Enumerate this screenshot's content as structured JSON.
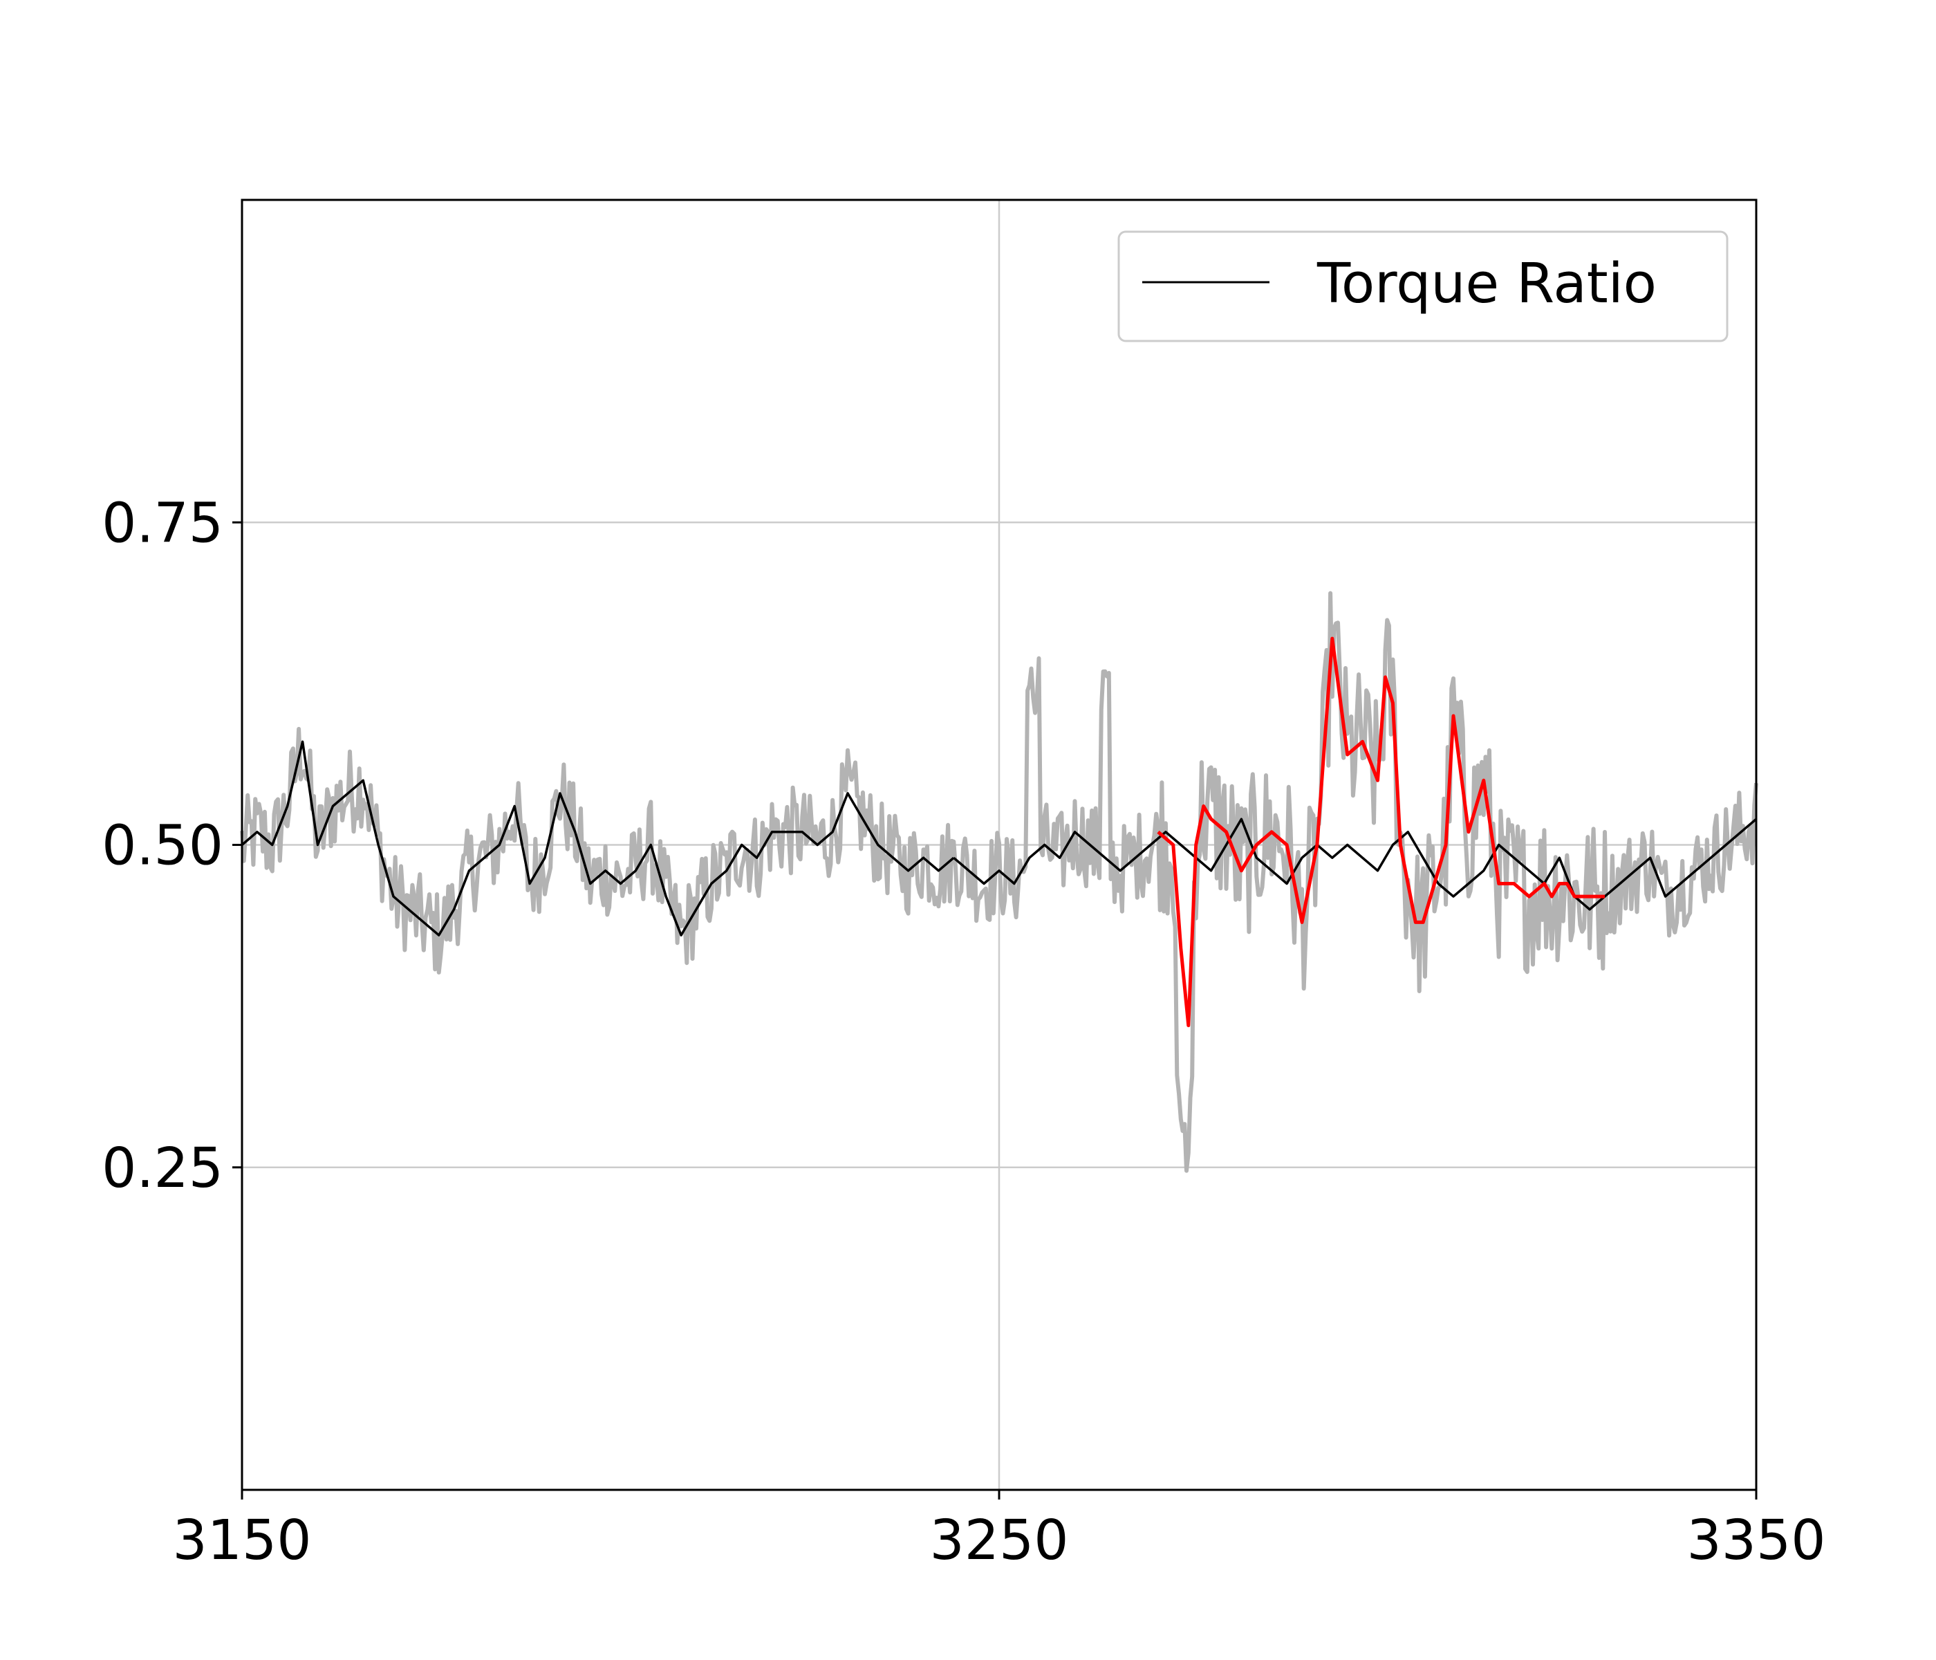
{
  "chart_data": {
    "type": "line",
    "title": "",
    "xlabel": "",
    "ylabel": "",
    "xlim": [
      3150,
      3350
    ],
    "ylim": [
      0.0,
      1.0
    ],
    "grid": true,
    "legend_position": "top-right",
    "x_ticks": [
      {
        "value": 3150,
        "label": "3150"
      },
      {
        "value": 3250,
        "label": "3250"
      },
      {
        "value": 3350,
        "label": "3350"
      }
    ],
    "y_ticks": [
      {
        "value": 0.25,
        "label": "0.25"
      },
      {
        "value": 0.5,
        "label": "0.50"
      },
      {
        "value": 0.75,
        "label": "0.75"
      }
    ],
    "legend": [
      {
        "label": "Torque Ratio",
        "color": "#000000"
      }
    ],
    "colors": {
      "raw": "#b3b3b3",
      "smoothed": "#000000",
      "highlight": "#ff0000"
    },
    "series": [
      {
        "name": "Torque Ratio",
        "color": "#000000",
        "x": [
          3150,
          3152,
          3154,
          3156,
          3158,
          3160,
          3162,
          3164,
          3166,
          3168,
          3170,
          3172,
          3174,
          3176,
          3178,
          3180,
          3182,
          3184,
          3186,
          3188,
          3190,
          3192,
          3194,
          3196,
          3198,
          3200,
          3202,
          3204,
          3206,
          3208,
          3210,
          3212,
          3214,
          3216,
          3218,
          3220,
          3222,
          3224,
          3226,
          3228,
          3230,
          3232,
          3234,
          3236,
          3238,
          3240,
          3242,
          3244
        ],
        "y": [
          0.5,
          0.51,
          0.5,
          0.53,
          0.58,
          0.5,
          0.53,
          0.54,
          0.55,
          0.5,
          0.46,
          0.45,
          0.44,
          0.43,
          0.45,
          0.48,
          0.49,
          0.5,
          0.53,
          0.47,
          0.49,
          0.54,
          0.51,
          0.47,
          0.48,
          0.47,
          0.48,
          0.5,
          0.46,
          0.43,
          0.45,
          0.47,
          0.48,
          0.5,
          0.49,
          0.51,
          0.51,
          0.51,
          0.5,
          0.51,
          0.54,
          0.52,
          0.5,
          0.49,
          0.48,
          0.49,
          0.48,
          0.49
        ]
      },
      {
        "name": "",
        "color": "#000000",
        "x": [
          3244,
          3246,
          3248,
          3250,
          3252,
          3254,
          3256,
          3258,
          3260,
          3262,
          3264,
          3266,
          3268,
          3270,
          3272,
          3274,
          3276,
          3278,
          3280,
          3282,
          3284,
          3286,
          3288,
          3290,
          3292,
          3294,
          3296,
          3298,
          3300,
          3302,
          3304,
          3306,
          3308,
          3310,
          3312,
          3314,
          3316,
          3318,
          3320,
          3322,
          3324,
          3326,
          3328,
          3330,
          3332,
          3334,
          3336,
          3338,
          3340,
          3342,
          3344,
          3346,
          3348,
          3350
        ],
        "y": [
          0.49,
          0.48,
          0.47,
          0.48,
          0.47,
          0.49,
          0.5,
          0.49,
          0.51,
          0.5,
          0.49,
          0.48,
          0.49,
          0.5,
          0.51,
          0.5,
          0.49,
          0.48,
          0.5,
          0.52,
          0.49,
          0.48,
          0.47,
          0.49,
          0.5,
          0.49,
          0.5,
          0.49,
          0.48,
          0.5,
          0.51,
          0.49,
          0.47,
          0.46,
          0.47,
          0.48,
          0.5,
          0.49,
          0.48,
          0.47,
          0.49,
          0.46,
          0.45,
          0.46,
          0.47,
          0.48,
          0.49,
          0.46,
          0.47,
          0.48,
          0.49,
          0.5,
          0.51,
          0.52
        ]
      },
      {
        "name": "",
        "color": "#ff0000",
        "x": [
          3271,
          3273,
          3274,
          3275,
          3276,
          3277,
          3278,
          3280,
          3282,
          3284,
          3286,
          3288,
          3290,
          3292,
          3294,
          3296,
          3298,
          3300,
          3301,
          3302,
          3303,
          3304,
          3305,
          3306,
          3307,
          3308,
          3309,
          3310,
          3312,
          3314,
          3316,
          3318,
          3320,
          3322,
          3323,
          3324,
          3325,
          3326,
          3328,
          3330
        ],
        "y": [
          0.51,
          0.5,
          0.42,
          0.36,
          0.5,
          0.53,
          0.52,
          0.51,
          0.48,
          0.5,
          0.51,
          0.5,
          0.44,
          0.5,
          0.66,
          0.57,
          0.58,
          0.55,
          0.63,
          0.61,
          0.5,
          0.47,
          0.44,
          0.44,
          0.46,
          0.48,
          0.5,
          0.6,
          0.51,
          0.55,
          0.47,
          0.47,
          0.46,
          0.47,
          0.46,
          0.47,
          0.47,
          0.46,
          0.46,
          0.46
        ]
      }
    ]
  }
}
